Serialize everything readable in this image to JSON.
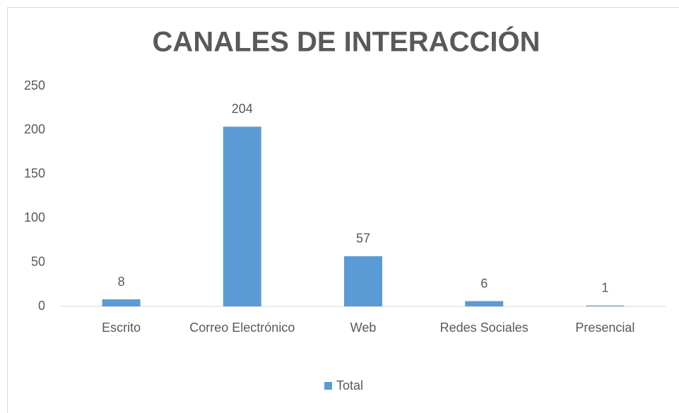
{
  "chart_data": {
    "type": "bar",
    "title": "CANALES DE INTERACCIÓN",
    "categories": [
      "Escrito",
      "Correo Electrónico",
      "Web",
      "Redes Sociales",
      "Presencial"
    ],
    "series": [
      {
        "name": "Total",
        "color": "#5b9bd5",
        "values": [
          8,
          204,
          57,
          6,
          1
        ]
      }
    ],
    "ylim": [
      0,
      250
    ],
    "yticks": [
      0,
      50,
      100,
      150,
      200,
      250
    ],
    "grid": false,
    "legend": "bottom"
  }
}
